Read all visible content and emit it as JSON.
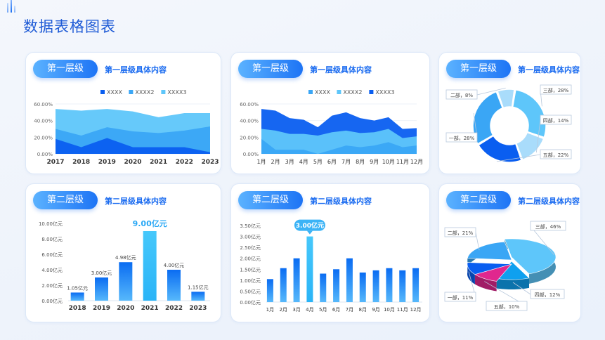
{
  "page": {
    "title": "数据表格图表"
  },
  "palette": {
    "dark": "#0a5ef0",
    "mid": "#3aa6f5",
    "light": "#5ec6fa",
    "pale": "#a9dcfb",
    "magenta": "#e0278e"
  },
  "cards": [
    {
      "tag": "第一层级",
      "subtitle": "第一层级具体内容"
    },
    {
      "tag": "第一层级",
      "subtitle": "第一层级具体内容"
    },
    {
      "tag": "第一层级",
      "subtitle": "第一层级具体内容"
    },
    {
      "tag": "第二层级",
      "subtitle": "第二层级具体内容"
    },
    {
      "tag": "第二层级",
      "subtitle": "第二层级具体内容"
    },
    {
      "tag": "第二层级",
      "subtitle": "第二层级具体内容"
    }
  ],
  "chart_data": [
    {
      "type": "area",
      "x": [
        "2017",
        "2018",
        "2019",
        "2020",
        "2021",
        "2022",
        "2023"
      ],
      "ylim": [
        0,
        60
      ],
      "yticks": [
        "0.00%",
        "20.00%",
        "40.00%",
        "60.00%"
      ],
      "legend_position": "top",
      "series": [
        {
          "name": "XXXX",
          "color": "#0a5ef0",
          "values": [
            18,
            8,
            19,
            8,
            8,
            8,
            2
          ]
        },
        {
          "name": "XXXX2",
          "color": "#3aa6f5",
          "values": [
            30,
            22,
            32,
            27,
            25,
            28,
            33
          ]
        },
        {
          "name": "XXXX3",
          "color": "#5ec6fa",
          "values": [
            54,
            52,
            54,
            51,
            44,
            49,
            49
          ]
        }
      ]
    },
    {
      "type": "area",
      "x": [
        "1月",
        "2月",
        "3月",
        "4月",
        "5月",
        "6月",
        "7月",
        "8月",
        "9月",
        "10月",
        "11月",
        "12月"
      ],
      "ylim": [
        0,
        60
      ],
      "yticks": [
        "0.00%",
        "20.00%",
        "40.00%",
        "60.00%"
      ],
      "legend_position": "top",
      "series": [
        {
          "name": "XXXX",
          "color": "#3aa6f5",
          "values": [
            18,
            5,
            5,
            5,
            0,
            5,
            10,
            8,
            10,
            14,
            8,
            10
          ]
        },
        {
          "name": "XXXX2",
          "color": "#5ec6fa",
          "values": [
            30,
            28,
            24,
            24,
            22,
            26,
            28,
            25,
            26,
            30,
            19,
            21
          ]
        },
        {
          "name": "XXXX3",
          "color": "#0a5ef0",
          "values": [
            54,
            52,
            43,
            41,
            32,
            46,
            50,
            43,
            40,
            44,
            30,
            31
          ]
        }
      ]
    },
    {
      "type": "pie",
      "variant": "donut",
      "slices": [
        {
          "label": "二部，8%",
          "value": 8,
          "color": "#a9dcfb"
        },
        {
          "label": "三部，28%",
          "value": 28,
          "color": "#5ec6fa"
        },
        {
          "label": "四部，14%",
          "value": 14,
          "color": "#a9dcfb"
        },
        {
          "label": "五部，22%",
          "value": 22,
          "color": "#0a5ef0"
        },
        {
          "label": "一部，28%",
          "value": 28,
          "color": "#3aa6f5"
        }
      ]
    },
    {
      "type": "bar",
      "categories": [
        "2018",
        "2019",
        "2020",
        "2021",
        "2022",
        "2023"
      ],
      "values": [
        1.05,
        3.0,
        4.98,
        9.0,
        4.0,
        1.15
      ],
      "value_labels": [
        "1.05亿元",
        "3.00亿元",
        "4.98亿元",
        "9.00亿元",
        "4.00亿元",
        "1.15亿元"
      ],
      "highlight_index": 3,
      "ylim": [
        0,
        10
      ],
      "yticks": [
        "0.00亿元",
        "2.00亿元",
        "4.00亿元",
        "6.00亿元",
        "8.00亿元",
        "10.00亿元"
      ]
    },
    {
      "type": "bar",
      "categories": [
        "1月",
        "2月",
        "3月",
        "4月",
        "5月",
        "6月",
        "7月",
        "8月",
        "9月",
        "10月",
        "11月",
        "12月"
      ],
      "values": [
        1.05,
        1.55,
        2.0,
        3.0,
        1.3,
        1.5,
        2.0,
        1.35,
        1.45,
        1.55,
        1.45,
        1.55
      ],
      "highlight_index": 3,
      "highlight_label": "3.00亿元",
      "ylim": [
        0,
        3.5
      ],
      "yticks": [
        "0.00亿元",
        "0.50亿元",
        "1.00亿元",
        "1.50亿元",
        "2.00亿元",
        "2.50亿元",
        "3.00亿元",
        "3.50亿元"
      ]
    },
    {
      "type": "pie",
      "variant": "3d",
      "slices": [
        {
          "label": "三部，46%",
          "value": 46,
          "color": "#5ec6fa"
        },
        {
          "label": "四部，12%",
          "value": 12,
          "color": "#0fa0ef"
        },
        {
          "label": "五部，10%",
          "value": 10,
          "color": "#e0278e"
        },
        {
          "label": "一部，11%",
          "value": 11,
          "color": "#0a5ef0"
        },
        {
          "label": "二部，21%",
          "value": 21,
          "color": "#3aa6f5"
        }
      ]
    }
  ]
}
